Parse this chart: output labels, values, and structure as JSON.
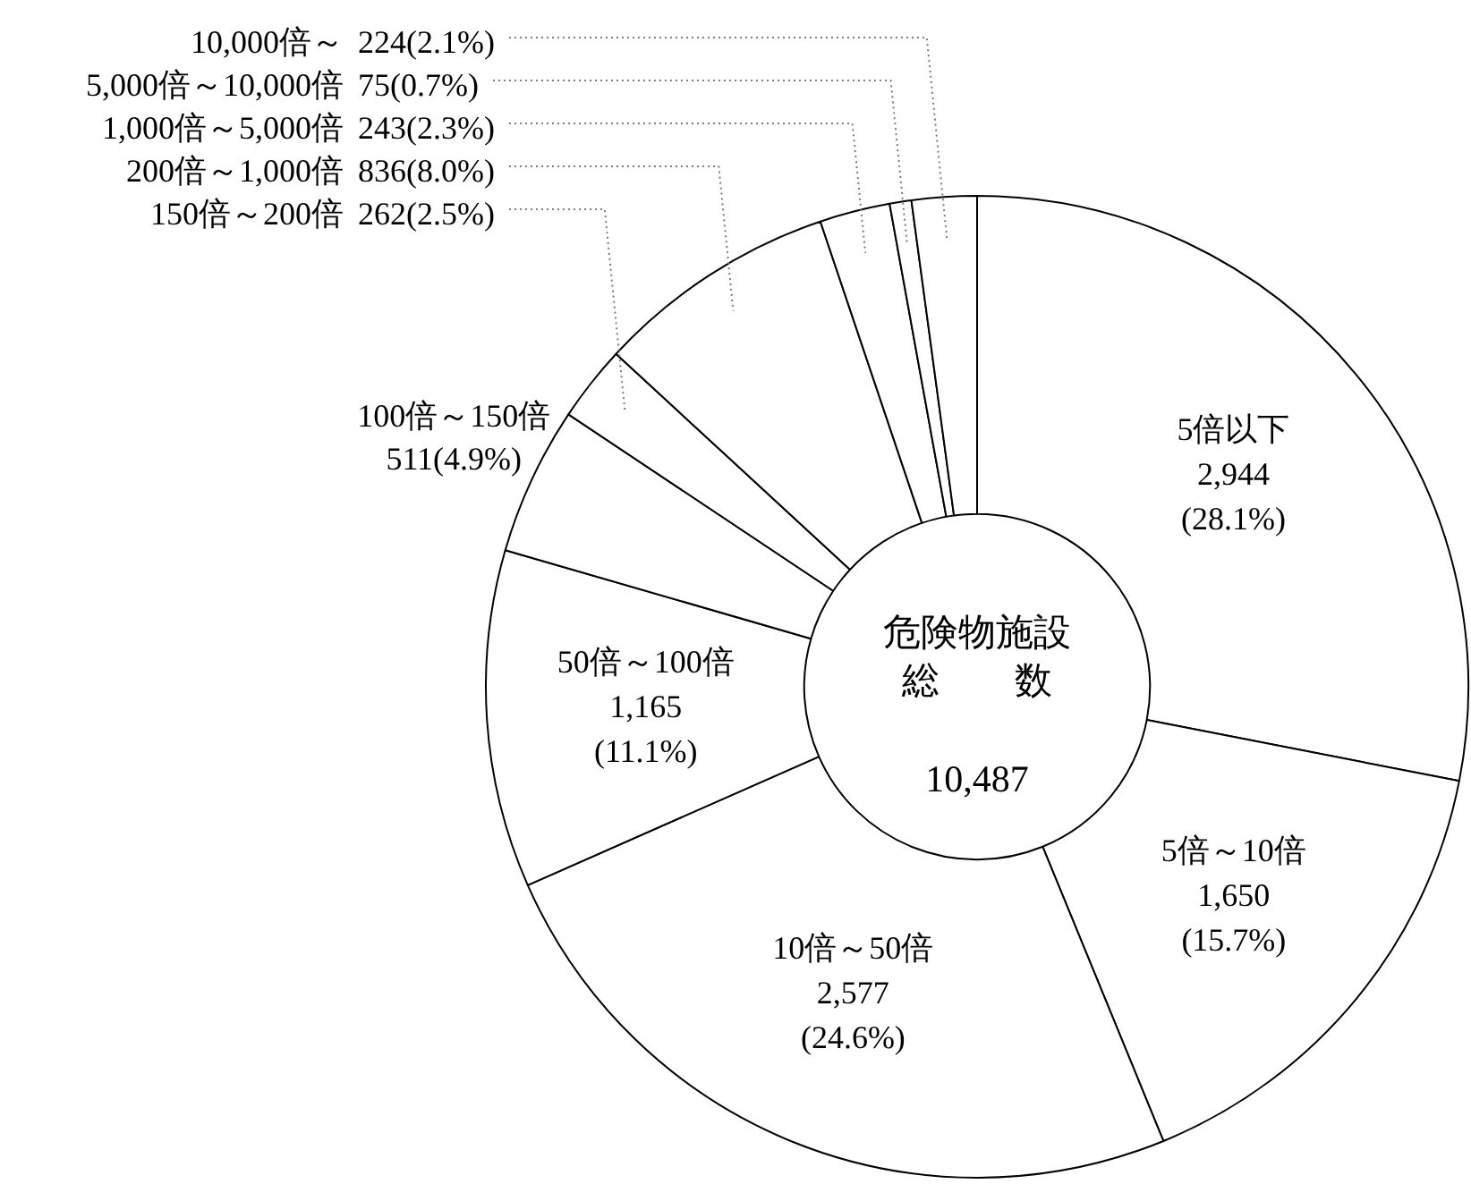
{
  "chart_data": {
    "type": "donut",
    "categories": [
      "5倍以下",
      "5倍～10倍",
      "10倍～50倍",
      "50倍～100倍",
      "100倍～150倍",
      "150倍～200倍",
      "200倍～1,000倍",
      "1,000倍～5,000倍",
      "5,000倍～10,000倍",
      "10,000倍～"
    ],
    "values": [
      2944,
      1650,
      2577,
      1165,
      511,
      262,
      836,
      243,
      75,
      224
    ],
    "value_labels": [
      "2,944 (28.1%)",
      "1,650 (15.7%)",
      "2,577 (24.6%)",
      "1,165 (11.1%)",
      "511(4.9%)",
      "262(2.5%)",
      "836(8.0%)",
      "243(2.3%)",
      "75(0.7%)",
      "224(2.1%)"
    ],
    "colors": [
      "#ffffff",
      "#ffffff",
      "#ffffff",
      "#ffffff",
      "#ffffff",
      "#ffffff",
      "#ffffff",
      "#ffffff",
      "#ffffff",
      "#ffffff"
    ],
    "annotations": [
      "危険物施設",
      "総　　数",
      "10,487"
    ],
    "legend": false
  }
}
